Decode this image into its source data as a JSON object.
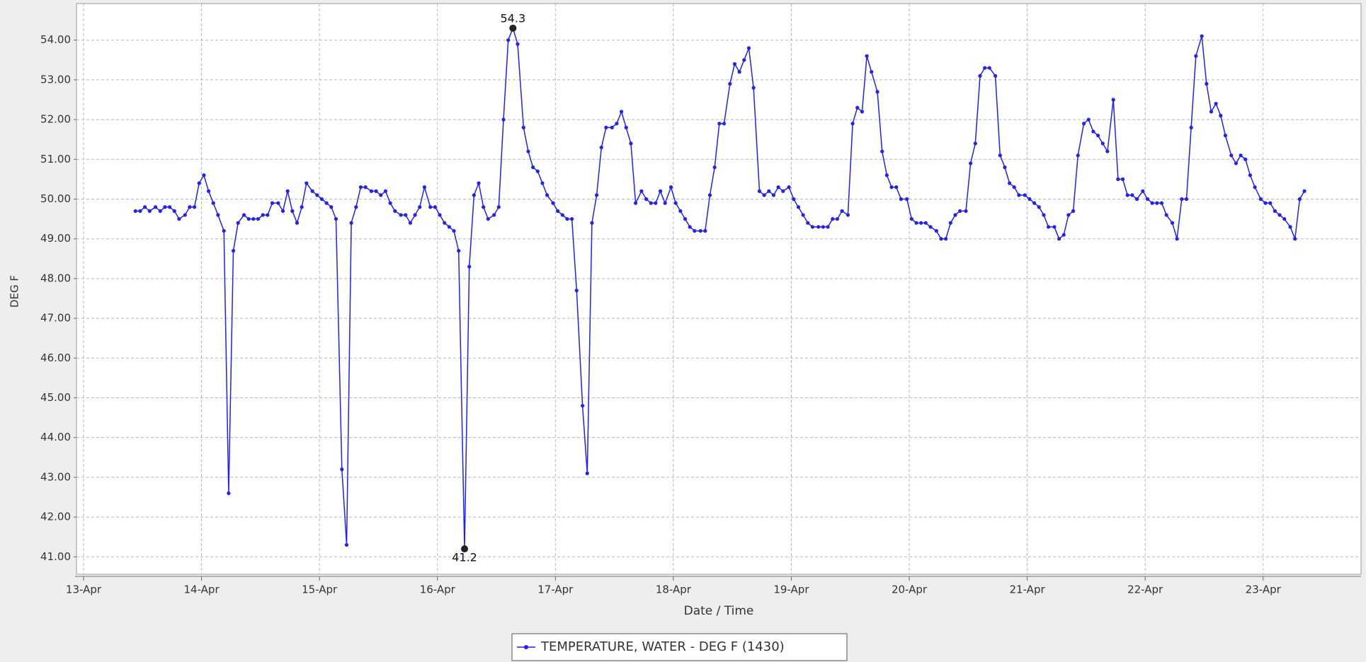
{
  "chart_data": {
    "type": "line",
    "x_label": "Date / Time",
    "y_label": "DEG F",
    "xlim": [
      12.94,
      23.83
    ],
    "ylim": [
      40.56,
      54.92
    ],
    "grid": true,
    "xticks": [
      {
        "value": 13,
        "label": "13-Apr"
      },
      {
        "value": 14,
        "label": "14-Apr"
      },
      {
        "value": 15,
        "label": "15-Apr"
      },
      {
        "value": 16,
        "label": "16-Apr"
      },
      {
        "value": 17,
        "label": "17-Apr"
      },
      {
        "value": 18,
        "label": "18-Apr"
      },
      {
        "value": 19,
        "label": "19-Apr"
      },
      {
        "value": 20,
        "label": "20-Apr"
      },
      {
        "value": 21,
        "label": "21-Apr"
      },
      {
        "value": 22,
        "label": "22-Apr"
      },
      {
        "value": 23,
        "label": "23-Apr"
      }
    ],
    "yticks": [
      {
        "value": 41,
        "label": "41.00"
      },
      {
        "value": 42,
        "label": "42.00"
      },
      {
        "value": 43,
        "label": "43.00"
      },
      {
        "value": 44,
        "label": "44.00"
      },
      {
        "value": 45,
        "label": "45.00"
      },
      {
        "value": 46,
        "label": "46.00"
      },
      {
        "value": 47,
        "label": "47.00"
      },
      {
        "value": 48,
        "label": "48.00"
      },
      {
        "value": 49,
        "label": "49.00"
      },
      {
        "value": 50,
        "label": "50.00"
      },
      {
        "value": 51,
        "label": "51.00"
      },
      {
        "value": 52,
        "label": "52.00"
      },
      {
        "value": 53,
        "label": "53.00"
      },
      {
        "value": 54,
        "label": "54.00"
      }
    ],
    "x": [
      13.44,
      13.48,
      13.52,
      13.56,
      13.61,
      13.65,
      13.69,
      13.73,
      13.77,
      13.81,
      13.86,
      13.9,
      13.94,
      13.98,
      14.02,
      14.06,
      14.1,
      14.14,
      14.19,
      14.23,
      14.27,
      14.31,
      14.36,
      14.4,
      14.44,
      14.48,
      14.52,
      14.56,
      14.6,
      14.65,
      14.69,
      14.73,
      14.77,
      14.81,
      14.85,
      14.89,
      14.94,
      14.98,
      15.02,
      15.06,
      15.1,
      15.14,
      15.19,
      15.23,
      15.27,
      15.31,
      15.35,
      15.39,
      15.44,
      15.48,
      15.52,
      15.56,
      15.6,
      15.64,
      15.69,
      15.73,
      15.77,
      15.81,
      15.85,
      15.89,
      15.94,
      15.98,
      16.02,
      16.06,
      16.1,
      16.14,
      16.18,
      16.23,
      16.27,
      16.31,
      16.35,
      16.39,
      16.43,
      16.48,
      16.52,
      16.56,
      16.6,
      16.64,
      16.68,
      16.73,
      16.77,
      16.81,
      16.85,
      16.89,
      16.93,
      16.98,
      17.02,
      17.06,
      17.1,
      17.14,
      17.18,
      17.23,
      17.27,
      17.31,
      17.35,
      17.39,
      17.43,
      17.48,
      17.52,
      17.56,
      17.6,
      17.64,
      17.68,
      17.73,
      17.77,
      17.81,
      17.85,
      17.89,
      17.93,
      17.98,
      18.02,
      18.06,
      18.1,
      18.14,
      18.18,
      18.23,
      18.27,
      18.31,
      18.35,
      18.39,
      18.43,
      18.48,
      18.52,
      18.56,
      18.6,
      18.64,
      18.68,
      18.73,
      18.77,
      18.81,
      18.85,
      18.89,
      18.93,
      18.98,
      19.02,
      19.06,
      19.1,
      19.14,
      19.18,
      19.23,
      19.27,
      19.31,
      19.35,
      19.39,
      19.43,
      19.48,
      19.52,
      19.56,
      19.6,
      19.64,
      19.68,
      19.73,
      19.77,
      19.81,
      19.85,
      19.89,
      19.93,
      19.98,
      20.02,
      20.06,
      20.1,
      20.14,
      20.18,
      20.23,
      20.27,
      20.31,
      20.35,
      20.39,
      20.43,
      20.48,
      20.52,
      20.56,
      20.6,
      20.64,
      20.68,
      20.73,
      20.77,
      20.81,
      20.85,
      20.89,
      20.93,
      20.98,
      21.02,
      21.06,
      21.1,
      21.14,
      21.18,
      21.23,
      21.27,
      21.31,
      21.35,
      21.39,
      21.43,
      21.48,
      21.52,
      21.56,
      21.6,
      21.64,
      21.68,
      21.73,
      21.77,
      21.81,
      21.85,
      21.89,
      21.93,
      21.98,
      22.02,
      22.06,
      22.1,
      22.14,
      22.18,
      22.23,
      22.27,
      22.31,
      22.35,
      22.39,
      22.43,
      22.48,
      22.52,
      22.56,
      22.6,
      22.64,
      22.68,
      22.73,
      22.77,
      22.81,
      22.85,
      22.89,
      22.93,
      22.98,
      23.02,
      23.06,
      23.1,
      23.14,
      23.18,
      23.23,
      23.27,
      23.31,
      23.35
    ],
    "series": [
      {
        "name": "TEMPERATURE, WATER - DEG F (1430)",
        "color": "#1f1fff",
        "values": [
          49.7,
          49.7,
          49.8,
          49.7,
          49.8,
          49.7,
          49.8,
          49.8,
          49.7,
          49.5,
          49.6,
          49.8,
          49.8,
          50.4,
          50.6,
          50.2,
          49.9,
          49.6,
          49.2,
          42.6,
          48.7,
          49.4,
          49.6,
          49.5,
          49.5,
          49.5,
          49.6,
          49.6,
          49.9,
          49.9,
          49.7,
          50.2,
          49.7,
          49.4,
          49.8,
          50.4,
          50.2,
          50.1,
          50.0,
          49.9,
          49.8,
          49.5,
          43.2,
          41.3,
          49.4,
          49.8,
          50.3,
          50.3,
          50.2,
          50.2,
          50.1,
          50.2,
          49.9,
          49.7,
          49.6,
          49.6,
          49.4,
          49.6,
          49.8,
          50.3,
          49.8,
          49.8,
          49.6,
          49.4,
          49.3,
          49.2,
          48.7,
          41.2,
          48.3,
          50.1,
          50.4,
          49.8,
          49.5,
          49.6,
          49.8,
          52.0,
          54.0,
          54.3,
          53.9,
          51.8,
          51.2,
          50.8,
          50.7,
          50.4,
          50.1,
          49.9,
          49.7,
          49.6,
          49.5,
          49.5,
          47.7,
          44.8,
          43.1,
          49.4,
          50.1,
          51.3,
          51.8,
          51.8,
          51.9,
          52.2,
          51.8,
          51.4,
          49.9,
          50.2,
          50.0,
          49.9,
          49.9,
          50.2,
          49.9,
          50.3,
          49.9,
          49.7,
          49.5,
          49.3,
          49.2,
          49.2,
          49.2,
          50.1,
          50.8,
          51.9,
          51.9,
          52.9,
          53.4,
          53.2,
          53.5,
          53.8,
          52.8,
          50.2,
          50.1,
          50.2,
          50.1,
          50.3,
          50.2,
          50.3,
          50.0,
          49.8,
          49.6,
          49.4,
          49.3,
          49.3,
          49.3,
          49.3,
          49.5,
          49.5,
          49.7,
          49.6,
          51.9,
          52.3,
          52.2,
          53.6,
          53.2,
          52.7,
          51.2,
          50.6,
          50.3,
          50.3,
          50.0,
          50.0,
          49.5,
          49.4,
          49.4,
          49.4,
          49.3,
          49.2,
          49.0,
          49.0,
          49.4,
          49.6,
          49.7,
          49.7,
          50.9,
          51.4,
          53.1,
          53.3,
          53.3,
          53.1,
          51.1,
          50.8,
          50.4,
          50.3,
          50.1,
          50.1,
          50.0,
          49.9,
          49.8,
          49.6,
          49.3,
          49.3,
          49.0,
          49.1,
          49.6,
          49.7,
          51.1,
          51.9,
          52.0,
          51.7,
          51.6,
          51.4,
          51.2,
          52.5,
          50.5,
          50.5,
          50.1,
          50.1,
          50.0,
          50.2,
          50.0,
          49.9,
          49.9,
          49.9,
          49.6,
          49.4,
          49.0,
          50.0,
          50.0,
          51.8,
          53.6,
          54.1,
          52.9,
          52.2,
          52.4,
          52.1,
          51.6,
          51.1,
          50.9,
          51.1,
          51.0,
          50.6,
          50.3,
          50.0,
          49.9,
          49.9,
          49.7,
          49.6,
          49.5,
          49.3,
          49.0,
          50.0,
          50.2
        ]
      }
    ],
    "annotations": [
      {
        "text": "54.3",
        "x": 16.64,
        "y": 54.3
      },
      {
        "text": "41.2",
        "x": 16.23,
        "y": 41.2
      }
    ]
  }
}
